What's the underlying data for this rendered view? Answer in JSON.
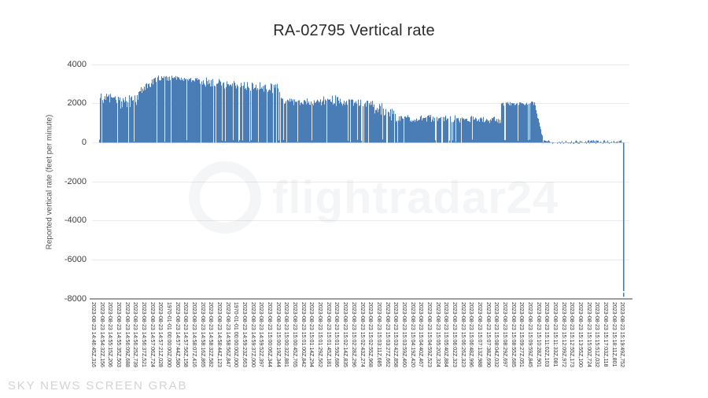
{
  "watermarks": {
    "bottom_left": "SKY NEWS SCREEN GRAB",
    "center_logo_text": "flightradar24"
  },
  "chart_data": {
    "type": "area",
    "title": "RA-02795 Vertical rate",
    "xlabel": "",
    "ylabel": "Reported vertical rate (feet per minute)",
    "ylim": [
      -8000,
      4000
    ],
    "yticks": [
      4000,
      2000,
      0,
      -2000,
      -4000,
      -6000,
      -8000
    ],
    "grid": "horizontal",
    "legend": "none",
    "series_color": "#4a7cb5",
    "x_labels": [
      "2023-08-23 14:46:45Z,316",
      "2023-08-23 14:54:32Z,156",
      "2023-08-23 14:55:15Z,206",
      "2023-08-23 14:55:35Z,503",
      "2023-08-23 14:56:09Z,688",
      "2023-08-23 14:56:25Z,739",
      "2023-08-23 14:56:37Z,521",
      "2023-08-23 14:57:06Z,724",
      "2023-08-23 14:57:21Z,028",
      "1970-01-01 00:00:00Z,000",
      "2023-08-23 14:57:44Z,580",
      "2023-08-23 14:57:56Z,158",
      "2023-08-23 14:58:07Z,416",
      "2023-08-23 14:58:16Z,865",
      "2023-08-23 14:58:32Z,582",
      "2023-08-23 14:58:44Z,123",
      "2023-08-23 14:58:56Z,847",
      "1970-01-01 00:00:00Z,000",
      "2023-08-23 14:59:23Z,663",
      "2023-08-23 14:59:37Z,000",
      "2023-08-23 14:59:52Z,397",
      "2023-08-23 15:00:06Z,344",
      "2023-08-23 15:00:19Z,344",
      "2023-08-23 15:00:32Z,881",
      "2023-08-23 15:00:45Z,765",
      "2023-08-23 15:01:00Z,842",
      "2023-08-23 15:01:14Z,294",
      "2023-08-23 15:01:29Z,562",
      "2023-08-23 15:01:45Z,181",
      "2023-08-23 15:01:59Z,686",
      "2023-08-23 15:02:14Z,835",
      "2023-08-23 15:02:28Z,296",
      "2023-08-23 15:02:43Z,274",
      "2023-08-23 15:02:55Z,968",
      "2023-08-23 15:03:11Z,685",
      "2023-08-23 15:03:27Z,662",
      "2023-08-23 15:03:42Z,858",
      "2023-08-23 15:03:59Z,460",
      "2023-08-23 15:04:19Z,420",
      "2023-08-23 15:04:40Z,467",
      "2023-08-23 15:04:59Z,523",
      "2023-08-23 15:05:20Z,324",
      "2023-08-23 15:05:40Z,884",
      "2023-08-23 15:06:02Z,323",
      "2023-08-23 15:06:26Z,323",
      "2023-08-23 15:06:48Z,996",
      "2023-08-23 15:07:13Z,988",
      "2023-08-23 15:07:38Z,690",
      "2023-08-23 15:08:04Z,032",
      "2023-08-23 15:08:29Z,697",
      "2023-08-23 15:08:55Z,685",
      "2023-08-23 15:09:27Z,051",
      "2023-08-23 15:09:59Z,845",
      "2023-08-23 15:10:28Z,901",
      "2023-08-23 15:11:02Z,103",
      "2023-08-23 15:11:33Z,081",
      "2023-08-23 15:12:09Z,972",
      "2023-08-23 15:12:55Z,173",
      "2023-08-23 15:13:55Z,100",
      "2023-08-23 15:15:00Z,724",
      "2023-08-23 15:15:51Z,032",
      "2023-08-23 15:17:03Z,118",
      "2023-08-23 15:18:11Z,801",
      "2023-08-23 15:19:49Z,752"
    ],
    "envelope_segments": [
      {
        "t0": 0.013,
        "t1": 0.05,
        "v0": 2250,
        "v1": 2300,
        "amp": 280,
        "dropout": 0.1
      },
      {
        "t0": 0.05,
        "t1": 0.085,
        "v0": 2050,
        "v1": 2150,
        "amp": 430,
        "dropout": 0.14
      },
      {
        "t0": 0.085,
        "t1": 0.125,
        "v0": 2550,
        "v1": 3300,
        "amp": 210,
        "dropout": 0.06
      },
      {
        "t0": 0.125,
        "t1": 0.195,
        "v0": 3320,
        "v1": 3240,
        "amp": 150,
        "dropout": 0.07
      },
      {
        "t0": 0.195,
        "t1": 0.3,
        "v0": 3150,
        "v1": 2850,
        "amp": 240,
        "dropout": 0.1
      },
      {
        "t0": 0.3,
        "t1": 0.35,
        "v0": 2870,
        "v1": 2760,
        "amp": 260,
        "dropout": 0.13
      },
      {
        "t0": 0.35,
        "t1": 0.43,
        "v0": 2120,
        "v1": 2060,
        "amp": 180,
        "dropout": 0.1
      },
      {
        "t0": 0.43,
        "t1": 0.465,
        "v0": 2180,
        "v1": 2120,
        "amp": 330,
        "dropout": 0.08
      },
      {
        "t0": 0.465,
        "t1": 0.52,
        "v0": 2060,
        "v1": 2000,
        "amp": 180,
        "dropout": 0.12
      },
      {
        "t0": 0.52,
        "t1": 0.565,
        "v0": 1900,
        "v1": 1380,
        "amp": 360,
        "dropout": 0.18
      },
      {
        "t0": 0.565,
        "t1": 0.7,
        "v0": 1260,
        "v1": 1200,
        "amp": 190,
        "dropout": 0.1
      },
      {
        "t0": 0.7,
        "t1": 0.76,
        "v0": 1210,
        "v1": 1150,
        "amp": 170,
        "dropout": 0.1
      },
      {
        "t0": 0.76,
        "t1": 0.824,
        "v0": 1980,
        "v1": 2010,
        "amp": 95,
        "dropout": 0.05
      },
      {
        "t0": 0.824,
        "t1": 0.838,
        "v0": 1850,
        "v1": 330,
        "amp": 120,
        "dropout": 0
      },
      {
        "t0": 0.838,
        "t1": 0.987,
        "v0": 35,
        "v1": 30,
        "amp": 95,
        "dropout": 0
      }
    ],
    "final_spike": {
      "t": 0.9895,
      "value": -7600,
      "tip_value": -7890
    },
    "noise_seed": 7
  }
}
